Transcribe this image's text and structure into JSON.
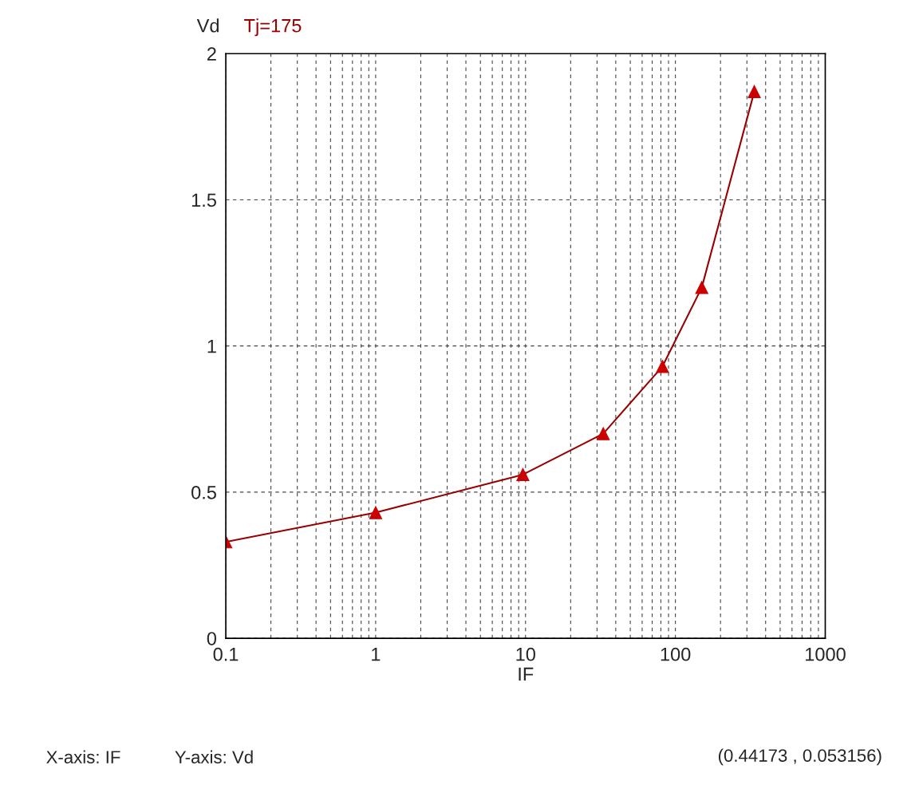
{
  "chart_data": {
    "type": "line",
    "xlabel": "IF",
    "ylabel": "Vd",
    "x": [
      0.1,
      1,
      9.6,
      33,
      82,
      150,
      336
    ],
    "series": [
      {
        "name": "Tj=175",
        "color": "#990000",
        "values": [
          0.33,
          0.43,
          0.56,
          0.7,
          0.93,
          1.2,
          1.87
        ]
      }
    ],
    "log": "x",
    "xlim": [
      0.1,
      1000
    ],
    "xticks": [
      0.1,
      1,
      10,
      100,
      1000
    ],
    "ylim": [
      0,
      2
    ],
    "yticks": [
      0,
      0.5,
      1,
      1.5,
      2
    ],
    "grid": true,
    "marker": "triangle",
    "line_style": "solid",
    "annotations": [
      "X-axis: IF",
      "Y-axis: Vd",
      "(0.44173 , 0.053156)"
    ]
  }
}
